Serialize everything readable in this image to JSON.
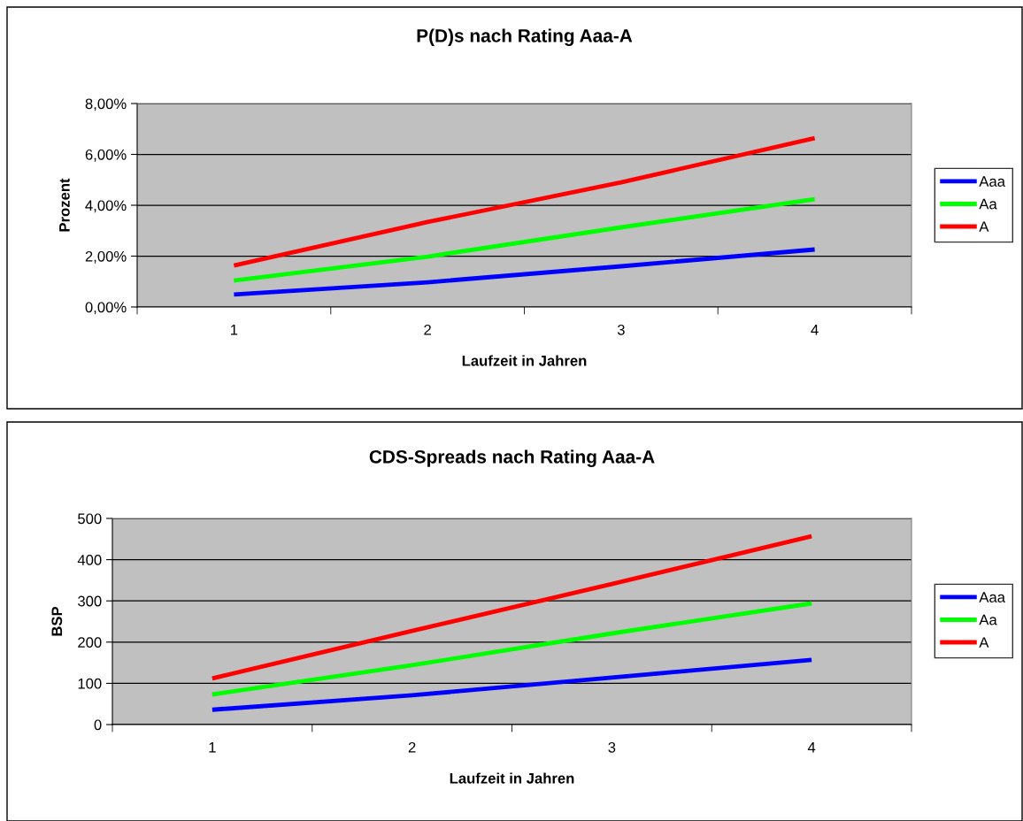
{
  "chart_data": [
    {
      "type": "line",
      "title": "P(D)s nach Rating Aaa-A",
      "xlabel": "Laufzeit in Jahren",
      "ylabel": "Prozent",
      "categories": [
        "1",
        "2",
        "3",
        "4"
      ],
      "series": [
        {
          "name": "Aaa",
          "color": "#0000ff",
          "values": [
            0.49,
            0.97,
            1.6,
            2.26
          ]
        },
        {
          "name": "Aa",
          "color": "#00ff00",
          "values": [
            1.04,
            1.98,
            3.13,
            4.24
          ]
        },
        {
          "name": "A",
          "color": "#ff0000",
          "values": [
            1.63,
            3.34,
            4.9,
            6.64
          ]
        }
      ],
      "ylim": [
        0,
        8
      ],
      "yticks": [
        {
          "value": 0,
          "label": "0,00%"
        },
        {
          "value": 2,
          "label": "2,00%"
        },
        {
          "value": 4,
          "label": "4,00%"
        },
        {
          "value": 6,
          "label": "6,00%"
        },
        {
          "value": 8,
          "label": "8,00%"
        }
      ],
      "grid": "y",
      "legend": "right",
      "marker": "none",
      "line_style": "solid"
    },
    {
      "type": "line",
      "title": "CDS-Spreads nach Rating Aaa-A",
      "xlabel": "Laufzeit in Jahren",
      "ylabel": "BSP",
      "categories": [
        "1",
        "2",
        "3",
        "4"
      ],
      "series": [
        {
          "name": "Aaa",
          "color": "#0000ff",
          "values": [
            36,
            71,
            114,
            157
          ]
        },
        {
          "name": "Aa",
          "color": "#00ff00",
          "values": [
            73,
            144,
            221,
            294
          ]
        },
        {
          "name": "A",
          "color": "#ff0000",
          "values": [
            112,
            227,
            341,
            457
          ]
        }
      ],
      "ylim": [
        0,
        500
      ],
      "yticks": [
        0,
        100,
        200,
        300,
        400,
        500
      ],
      "grid": "y",
      "legend": "right",
      "marker": "none",
      "line_style": "solid"
    }
  ]
}
